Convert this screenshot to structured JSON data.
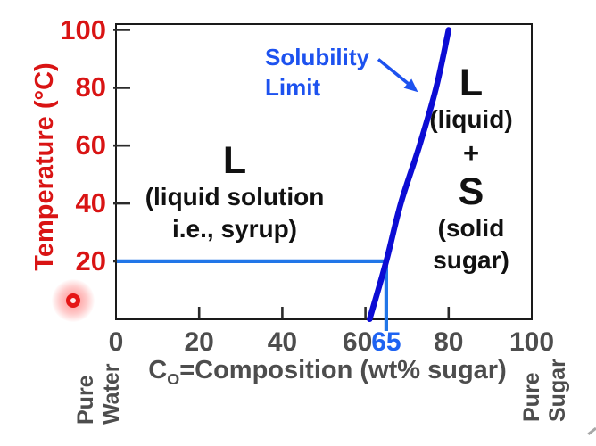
{
  "chart_data": {
    "type": "line",
    "title": "",
    "xlabel": "CO=Composition (wt% sugar)",
    "ylabel": "Temperature (°C)",
    "xlim": [
      0,
      100
    ],
    "ylim": [
      0,
      100
    ],
    "grid": false,
    "legend": "none (annotated with arrow callout)",
    "series": [
      {
        "name": "Solubility Limit",
        "color": "#0c0cd4",
        "x_is_composition_wt_pct_sugar": true,
        "points_composition_temperature": [
          [
            61,
            0
          ],
          [
            65,
            20
          ],
          [
            68.5,
            40
          ],
          [
            73,
            60
          ],
          [
            77,
            80
          ],
          [
            80,
            100
          ]
        ]
      }
    ],
    "tie_line": {
      "temperature": 20,
      "composition": 65,
      "color": "#2176e8"
    },
    "x_axis": {
      "tick_marks": [
        20,
        40,
        60,
        80
      ],
      "tick_labels": [
        {
          "text": "0",
          "v": 0
        },
        {
          "text": "20",
          "v": 20
        },
        {
          "text": "40",
          "v": 40
        },
        {
          "text": "60",
          "v": 60,
          "dx": -9
        },
        {
          "text": "65",
          "v": 65,
          "color": "#1e63f2"
        },
        {
          "text": "80",
          "v": 80
        },
        {
          "text": "100",
          "v": 100
        }
      ],
      "title_parts": {
        "base": "C",
        "sub": "O",
        "rest": "=Composition (wt% sugar)"
      }
    },
    "y_axis": {
      "tick_marks": [
        20,
        40,
        60,
        80,
        100
      ],
      "tick_labels": [
        {
          "text": "100",
          "t": 100
        },
        {
          "text": "80",
          "t": 80
        },
        {
          "text": "60",
          "t": 60
        },
        {
          "text": "40",
          "t": 40
        },
        {
          "text": "20",
          "t": 20
        }
      ],
      "title": "Temperature (°C)"
    },
    "callout": {
      "lines": [
        "Solubility",
        "Limit"
      ],
      "color": "#1d52ef"
    },
    "regions": {
      "left": {
        "lines": [
          "L",
          "(liquid solution",
          "i.e., syrup)"
        ]
      },
      "right": {
        "lines": [
          "L",
          "(liquid)",
          "+",
          "S",
          "(solid",
          "sugar)"
        ]
      }
    },
    "corners": {
      "left": [
        "Pure",
        "Water"
      ],
      "right": [
        "Pure",
        "Sugar"
      ]
    },
    "colors": {
      "axis_red": "#d91414",
      "axis_gray": "#4d4d4d",
      "curve_blue": "#0c0cd4",
      "tie_blue": "#2176e8",
      "callout_blue": "#1d52ef",
      "tick_black": "#2b2b2b",
      "border_black": "#1a1a1a",
      "pointer_red": "#e51515"
    }
  },
  "ui": {
    "pointer": {
      "kind": "laser-pointer-dot",
      "color": "#e51515"
    }
  }
}
